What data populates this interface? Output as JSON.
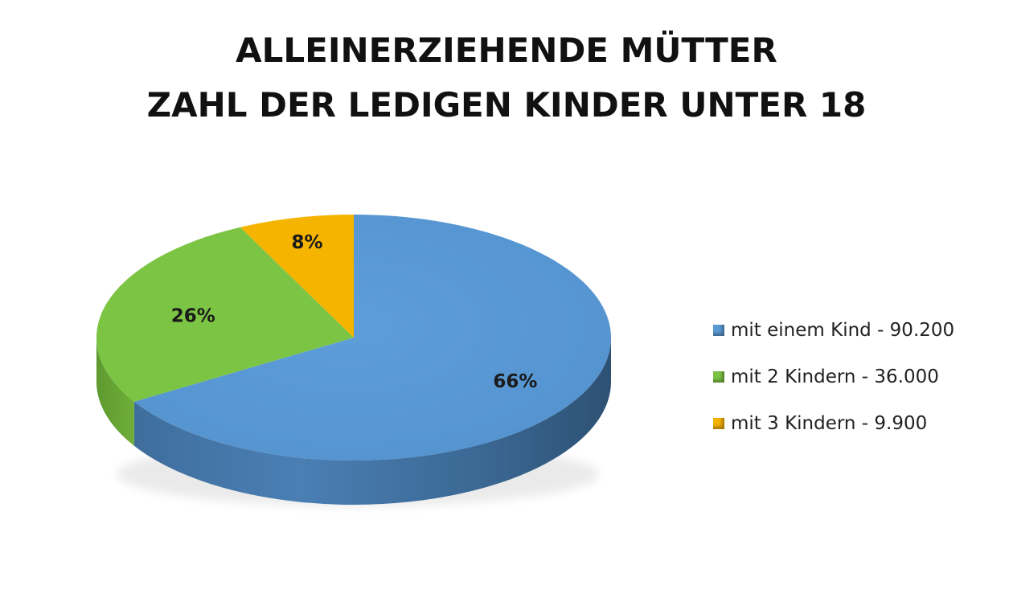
{
  "chart_data": {
    "type": "pie",
    "title_line1": "ALLEINERZIEHENDE MÜTTER",
    "title_line2": "ZAHL DER LEDIGEN KINDER UNTER 18",
    "legend_position": "right",
    "slices": [
      {
        "label": "mit einem Kind - 90.200",
        "value": 90200,
        "percent_label": "66%",
        "color": "#5b9bd5"
      },
      {
        "label": "mit 2 Kindern - 36.000",
        "value": 36000,
        "percent_label": "26%",
        "color": "#7cc444"
      },
      {
        "label": "mit 3 Kindern - 9.900",
        "value": 9900,
        "percent_label": "8%",
        "color": "#f5b400"
      }
    ]
  }
}
